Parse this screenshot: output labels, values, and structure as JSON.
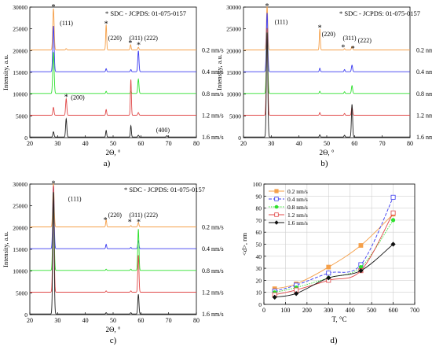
{
  "chart_data": [
    {
      "type": "line",
      "panel_label": "a)",
      "xlabel": "2Θ, °",
      "ylabel": "Intensity, a.u.",
      "xlim": [
        20,
        80
      ],
      "ylim": [
        0,
        30000
      ],
      "xticks": [
        20,
        30,
        40,
        50,
        60,
        70,
        80
      ],
      "yticks": [
        0,
        5000,
        10000,
        15000,
        20000,
        25000,
        30000
      ],
      "legend": "* SDC - JCPDS: 01-075-0157",
      "series": [
        {
          "name": "0.2 nm/s",
          "offset": 20000,
          "color": "#f5a04a",
          "peaks": [
            [
              28.5,
              9500,
              0.35
            ],
            [
              33.1,
              300,
              0.3
            ],
            [
              47.5,
              5800,
              0.25
            ],
            [
              56.3,
              1200,
              0.25
            ],
            [
              59.1,
              600,
              0.3
            ]
          ]
        },
        {
          "name": "0.4 nm/s",
          "offset": 15000,
          "color": "#3b3bf0",
          "peaks": [
            [
              28.5,
              10500,
              0.35
            ],
            [
              47.5,
              700,
              0.25
            ],
            [
              56.4,
              500,
              0.25
            ],
            [
              59.1,
              4800,
              0.3
            ]
          ]
        },
        {
          "name": "0.8 nm/s",
          "offset": 10000,
          "color": "#2ee02e",
          "peaks": [
            [
              28.5,
              9500,
              0.35
            ],
            [
              47.5,
              500,
              0.25
            ],
            [
              56.4,
              500,
              0.25
            ],
            [
              59.1,
              3300,
              0.3
            ]
          ]
        },
        {
          "name": "1.2 nm/s",
          "offset": 5000,
          "color": "#e04848",
          "peaks": [
            [
              28.5,
              1800,
              0.3
            ],
            [
              33.1,
              3800,
              0.3
            ],
            [
              47.5,
              1300,
              0.25
            ],
            [
              56.4,
              8200,
              0.25
            ],
            [
              59.1,
              600,
              0.3
            ]
          ]
        },
        {
          "name": "1.6 nm/s",
          "offset": 0,
          "color": "#222222",
          "peaks": [
            [
              28.5,
              1200,
              0.3
            ],
            [
              33.1,
              4200,
              0.3
            ],
            [
              47.5,
              1500,
              0.25
            ],
            [
              56.4,
              2600,
              0.25
            ],
            [
              59.1,
              400,
              0.3
            ],
            [
              69.4,
              300,
              0.3
            ]
          ]
        }
      ],
      "annotations": [
        {
          "text": "(111)",
          "x": 30.8,
          "y": 25800
        },
        {
          "text": "(220)",
          "x": 48.2,
          "y": 22400
        },
        {
          "text": "(311)",
          "x": 55.8,
          "y": 22400
        },
        {
          "text": "(222)",
          "x": 61.2,
          "y": 22400
        },
        {
          "text": "(200)",
          "x": 34.8,
          "y": 8800
        },
        {
          "text": "(400)",
          "x": 65.5,
          "y": 1300
        }
      ],
      "markers": [
        {
          "x": 28.5,
          "y": 30200
        },
        {
          "x": 47.5,
          "y": 26300
        },
        {
          "x": 56.2,
          "y": 21900
        },
        {
          "x": 59.2,
          "y": 21400
        },
        {
          "x": 33.1,
          "y": 9500
        }
      ]
    },
    {
      "type": "line",
      "panel_label": "b)",
      "xlabel": "2Θ, °",
      "ylabel": "Intensity, a.u.",
      "xlim": [
        20,
        80
      ],
      "ylim": [
        0,
        30000
      ],
      "xticks": [
        20,
        30,
        40,
        50,
        60,
        70,
        80
      ],
      "yticks": [
        0,
        5000,
        10000,
        15000,
        20000,
        25000,
        30000
      ],
      "legend": "* SDC - JCPDS: 01-075-0157",
      "series": [
        {
          "name": "0.2 nm/s",
          "offset": 20000,
          "color": "#f5a04a",
          "peaks": [
            [
              28.5,
              10000,
              0.35
            ],
            [
              47.5,
              4800,
              0.25
            ],
            [
              56.4,
              300,
              0.25
            ],
            [
              59.1,
              800,
              0.3
            ]
          ]
        },
        {
          "name": "0.4 nm/s",
          "offset": 15000,
          "color": "#3b3bf0",
          "peaks": [
            [
              28.5,
              13500,
              0.35
            ],
            [
              47.5,
              800,
              0.25
            ],
            [
              56.4,
              500,
              0.25
            ],
            [
              59.1,
              1500,
              0.3
            ]
          ]
        },
        {
          "name": "0.8 nm/s",
          "offset": 10000,
          "color": "#2ee02e",
          "peaks": [
            [
              28.5,
              15000,
              0.35
            ],
            [
              47.5,
              500,
              0.25
            ],
            [
              56.4,
              400,
              0.25
            ],
            [
              59.1,
              1800,
              0.3
            ]
          ]
        },
        {
          "name": "1.2 nm/s",
          "offset": 5000,
          "color": "#e04848",
          "peaks": [
            [
              28.5,
              20000,
              0.35
            ],
            [
              47.5,
              600,
              0.25
            ],
            [
              56.4,
              400,
              0.25
            ],
            [
              59.1,
              1900,
              0.3
            ]
          ]
        },
        {
          "name": "1.6 nm/s",
          "offset": 0,
          "color": "#222222",
          "peaks": [
            [
              28.5,
              24000,
              0.35
            ],
            [
              47.5,
              500,
              0.25
            ],
            [
              56.4,
              400,
              0.25
            ],
            [
              59.1,
              7500,
              0.3
            ]
          ]
        }
      ],
      "annotations": [
        {
          "text": "(111)",
          "x": 31.2,
          "y": 26100
        },
        {
          "text": "(220)",
          "x": 48.2,
          "y": 23300
        },
        {
          "text": "(311)",
          "x": 55.8,
          "y": 22400
        },
        {
          "text": "(222)",
          "x": 61.2,
          "y": 21900
        }
      ],
      "markers": [
        {
          "x": 28.5,
          "y": 30400
        },
        {
          "x": 47.5,
          "y": 25400
        },
        {
          "x": 55.9,
          "y": 20900
        },
        {
          "x": 59.4,
          "y": 20600
        }
      ]
    },
    {
      "type": "line",
      "panel_label": "c)",
      "xlabel": "2Θ, °",
      "ylabel": "Intensity, a.u.",
      "xlim": [
        20,
        80
      ],
      "ylim": [
        0,
        30000
      ],
      "xticks": [
        20,
        30,
        40,
        50,
        60,
        70,
        80
      ],
      "yticks": [
        0,
        5000,
        10000,
        15000,
        20000,
        25000,
        30000
      ],
      "legend": "* SDC - JCPDS: 01-075-0157",
      "series": [
        {
          "name": "0.2 nm/s",
          "offset": 20000,
          "color": "#f5a04a",
          "peaks": [
            [
              28.5,
              10000,
              0.35
            ],
            [
              47.5,
              1600,
              0.25
            ],
            [
              56.4,
              300,
              0.25
            ],
            [
              59.1,
              1000,
              0.3
            ]
          ]
        },
        {
          "name": "0.4 nm/s",
          "offset": 15000,
          "color": "#3b3bf0",
          "peaks": [
            [
              28.5,
              14500,
              0.35
            ],
            [
              47.5,
              1000,
              0.25
            ],
            [
              56.4,
              300,
              0.25
            ],
            [
              59.1,
              1800,
              0.3
            ]
          ]
        },
        {
          "name": "0.8 nm/s",
          "offset": 10000,
          "color": "#2ee02e",
          "peaks": [
            [
              28.5,
              18500,
              0.35
            ],
            [
              47.5,
              300,
              0.25
            ],
            [
              56.4,
              300,
              0.25
            ],
            [
              59.1,
              9500,
              0.3
            ]
          ]
        },
        {
          "name": "1.2 nm/s",
          "offset": 5000,
          "color": "#e04848",
          "peaks": [
            [
              28.5,
              24500,
              0.35
            ],
            [
              47.5,
              300,
              0.25
            ],
            [
              56.4,
              300,
              0.25
            ],
            [
              59.1,
              8500,
              0.3
            ]
          ]
        },
        {
          "name": "1.6 nm/s",
          "offset": 0,
          "color": "#222222",
          "peaks": [
            [
              28.5,
              28000,
              0.35
            ],
            [
              47.5,
              300,
              0.25
            ],
            [
              56.4,
              300,
              0.25
            ],
            [
              59.1,
              4500,
              0.3
            ]
          ]
        }
      ],
      "annotations": [
        {
          "text": "(111)",
          "x": 33.8,
          "y": 26100
        },
        {
          "text": "(220)",
          "x": 48.2,
          "y": 22400
        },
        {
          "text": "(311)",
          "x": 55.8,
          "y": 22400
        },
        {
          "text": "(222)",
          "x": 61.2,
          "y": 22400
        }
      ],
      "markers": [
        {
          "x": 28.5,
          "y": 30300
        },
        {
          "x": 47.2,
          "y": 21900
        },
        {
          "x": 56.0,
          "y": 21400
        },
        {
          "x": 59.2,
          "y": 21400
        }
      ]
    },
    {
      "type": "line",
      "panel_label": "d)",
      "xlabel": "T, °C",
      "ylabel": "<d>, nm",
      "xlim": [
        0,
        700
      ],
      "ylim": [
        0,
        100
      ],
      "xticks": [
        0,
        100,
        200,
        300,
        400,
        500,
        600,
        700
      ],
      "yticks": [
        0,
        10,
        20,
        30,
        40,
        50,
        60,
        70,
        80,
        90,
        100
      ],
      "grid": true,
      "legend_position": "top-left",
      "x": [
        50,
        150,
        300,
        450,
        600
      ],
      "series": [
        {
          "name": "0.2 nm/s",
          "color": "#f5a04a",
          "dash": "solid",
          "marker": "square",
          "values": [
            13,
            17,
            31,
            49,
            75
          ]
        },
        {
          "name": "0.4 nm/s",
          "color": "#3b3bf0",
          "dash": "dashed",
          "marker": "open-square",
          "values": [
            11,
            16,
            26,
            33,
            89
          ]
        },
        {
          "name": "0.8 nm/s",
          "color": "#2ee02e",
          "dash": "dotted",
          "marker": "circle",
          "values": [
            10,
            14,
            22,
            31,
            70
          ]
        },
        {
          "name": "1.2 nm/s",
          "color": "#e04848",
          "dash": "solid",
          "marker": "open-square",
          "values": [
            8,
            12,
            20,
            28,
            76
          ]
        },
        {
          "name": "1.6 nm/s",
          "color": "#111111",
          "dash": "solid",
          "marker": "diamond",
          "values": [
            6,
            9,
            22,
            28,
            50
          ]
        }
      ]
    }
  ]
}
